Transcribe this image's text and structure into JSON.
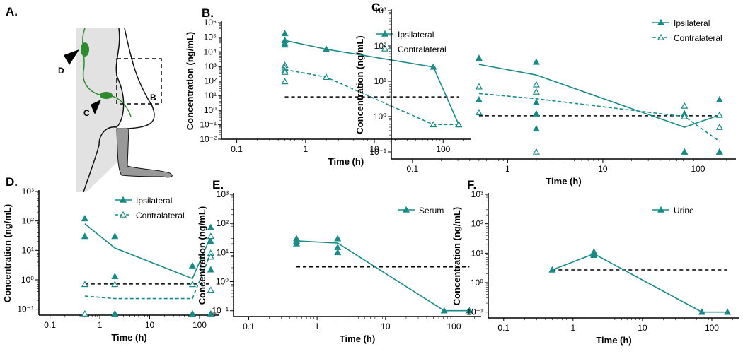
{
  "diagram": {
    "panel": "A.",
    "labels": [
      "D",
      "C",
      "B"
    ]
  },
  "chart_data": [
    {
      "type": "line",
      "panel": "B.",
      "xlabel": "Time (h)",
      "ylabel": "Concentration (ng/mL)",
      "xscale": "log",
      "yscale": "log",
      "xlim": [
        0.06,
        250
      ],
      "ylim": [
        0.01,
        1000000
      ],
      "xticks": [
        0.1,
        1,
        10,
        100
      ],
      "yticks": [
        {
          "value": 0.01,
          "label": "10⁻²"
        },
        {
          "value": 0.1,
          "label": "10⁻¹"
        },
        {
          "value": 1,
          "label": "10⁰"
        },
        {
          "value": 10,
          "label": "10¹"
        },
        {
          "value": 100,
          "label": "10²"
        },
        {
          "value": 1000,
          "label": "10³"
        },
        {
          "value": 10000,
          "label": "10⁴"
        },
        {
          "value": 100000,
          "label": "10⁵"
        },
        {
          "value": 1000000,
          "label": "10⁶"
        }
      ],
      "threshold": 8,
      "threshold_x": [
        0.5,
        168
      ],
      "series": [
        {
          "name": "Ipsilateral",
          "color": "#1a8a87",
          "dash": false,
          "marker": "filled",
          "x": [
            0.5,
            2,
            72,
            168
          ],
          "values": [
            60000,
            15000,
            900,
            0.1
          ],
          "points": {
            "x": [
              0.5,
              0.5,
              0.5,
              0.5,
              2,
              72,
              168,
              168
            ],
            "y": [
              180000,
              60000,
              40000,
              30000,
              15000,
              900,
              0.1,
              0.1
            ]
          }
        },
        {
          "name": "Contralateral",
          "color": "#1a8a87",
          "dash": true,
          "marker": "open",
          "x": [
            0.5,
            2,
            72,
            168
          ],
          "values": [
            600,
            180,
            0.1,
            0.1
          ],
          "points": {
            "x": [
              0.5,
              0.5,
              0.5,
              0.5,
              0.5,
              2,
              72,
              168
            ],
            "y": [
              1200,
              800,
              500,
              400,
              90,
              180,
              0.1,
              0.1
            ]
          }
        }
      ]
    },
    {
      "type": "line",
      "panel": "C.",
      "xlabel": "Time (h)",
      "ylabel": "Concentration (ng/mL)",
      "xscale": "log",
      "yscale": "log",
      "xlim": [
        0.06,
        250
      ],
      "ylim": [
        0.063,
        1000
      ],
      "xticks": [
        0.1,
        1,
        10,
        100
      ],
      "yticks": [
        {
          "value": 0.1,
          "label": "10⁻¹"
        },
        {
          "value": 1,
          "label": "10⁰"
        },
        {
          "value": 10,
          "label": "10¹"
        },
        {
          "value": 100,
          "label": "10²"
        },
        {
          "value": 1000,
          "label": "10³"
        }
      ],
      "threshold": 1.05,
      "threshold_x": [
        0.5,
        168
      ],
      "series": [
        {
          "name": "Ipsilateral",
          "color": "#1a8a87",
          "dash": false,
          "marker": "filled",
          "x": [
            0.5,
            2,
            72,
            168
          ],
          "values": [
            30,
            15,
            0.5,
            1.1
          ],
          "points": {
            "x": [
              0.5,
              0.5,
              2,
              2,
              2,
              2,
              72,
              72,
              72,
              168,
              168,
              168
            ],
            "y": [
              45,
              3,
              35,
              1.2,
              0.45,
              2.5,
              1.2,
              0.1,
              0.1,
              3,
              0.1,
              0.1
            ]
          }
        },
        {
          "name": "Contralateral",
          "color": "#1a8a87",
          "dash": true,
          "marker": "open",
          "x": [
            0.5,
            2,
            72,
            168
          ],
          "values": [
            4.5,
            3.2,
            1,
            0.2
          ],
          "points": {
            "x": [
              0.5,
              0.5,
              2,
              2,
              2,
              72,
              72,
              168,
              168
            ],
            "y": [
              7,
              1.3,
              8,
              5,
              0.1,
              2,
              1,
              1.1,
              0.5
            ]
          }
        }
      ]
    },
    {
      "type": "line",
      "panel": "D.",
      "xlabel": "Time (h)",
      "ylabel": "Concentration (ng/mL)",
      "xscale": "log",
      "yscale": "log",
      "xlim": [
        0.06,
        250
      ],
      "ylim": [
        0.063,
        1000
      ],
      "xticks": [
        0.1,
        1,
        10,
        100
      ],
      "yticks": [
        {
          "value": 0.1,
          "label": "10⁻¹"
        },
        {
          "value": 1,
          "label": "10⁰"
        },
        {
          "value": 10,
          "label": "10¹"
        },
        {
          "value": 100,
          "label": "10²"
        },
        {
          "value": 1000,
          "label": "10³"
        }
      ],
      "threshold": 0.72,
      "threshold_x": [
        0.5,
        168
      ],
      "series": [
        {
          "name": "Ipsilateral",
          "color": "#1a8a87",
          "dash": false,
          "marker": "filled",
          "x": [
            0.5,
            2,
            72,
            168
          ],
          "values": [
            80,
            12,
            1.1,
            30
          ],
          "points": {
            "x": [
              0.5,
              0.5,
              2,
              2,
              2,
              2,
              72,
              72,
              72,
              168,
              168,
              168,
              168,
              168
            ],
            "y": [
              120,
              30,
              30,
              1.3,
              0.07,
              0.07,
              3,
              0.07,
              0.07,
              60,
              20,
              6,
              2.2,
              0.07
            ]
          }
        },
        {
          "name": "Contralateral",
          "color": "#1a8a87",
          "dash": true,
          "marker": "open",
          "x": [
            0.5,
            2,
            72,
            168
          ],
          "values": [
            0.28,
            0.23,
            0.23,
            8
          ],
          "points": {
            "x": [
              0.5,
              0.5,
              2,
              72,
              168,
              168,
              168,
              168
            ],
            "y": [
              0.7,
              0.07,
              0.7,
              0.7,
              30,
              8,
              6,
              0.45
            ]
          }
        }
      ]
    },
    {
      "type": "line",
      "panel": "E.",
      "xlabel": "Time (h)",
      "ylabel": "Concentration (ng/mL)",
      "xscale": "log",
      "yscale": "log",
      "xlim": [
        0.06,
        250
      ],
      "ylim": [
        0.063,
        1000
      ],
      "xticks": [
        0.1,
        1,
        10,
        100
      ],
      "yticks": [
        {
          "value": 0.1,
          "label": "10⁻¹"
        },
        {
          "value": 1,
          "label": "10⁰"
        },
        {
          "value": 10,
          "label": "10¹"
        },
        {
          "value": 100,
          "label": "10²"
        },
        {
          "value": 1000,
          "label": "10³"
        }
      ],
      "threshold": 3.2,
      "threshold_x": [
        0.5,
        168
      ],
      "series": [
        {
          "name": "Serum",
          "color": "#1a8a87",
          "dash": false,
          "marker": "filled",
          "x": [
            0.5,
            2,
            72,
            168
          ],
          "values": [
            25,
            21,
            0.1,
            0.1
          ],
          "points": {
            "x": [
              0.5,
              0.5,
              0.5,
              2,
              2,
              2,
              72,
              168
            ],
            "y": [
              30,
              25,
              20,
              30,
              15,
              10,
              0.1,
              0.1
            ]
          }
        }
      ]
    },
    {
      "type": "line",
      "panel": "F.",
      "xlabel": "Time (h)",
      "ylabel": "Concentration (ng/mL)",
      "xscale": "log",
      "yscale": "log",
      "xlim": [
        0.06,
        250
      ],
      "ylim": [
        0.063,
        1000
      ],
      "xticks": [
        0.1,
        1,
        10,
        100
      ],
      "yticks": [
        {
          "value": 0.1,
          "label": "10⁻¹"
        },
        {
          "value": 1,
          "label": "10⁰"
        },
        {
          "value": 10,
          "label": "10¹"
        },
        {
          "value": 100,
          "label": "10²"
        },
        {
          "value": 1000,
          "label": "10³"
        }
      ],
      "threshold": 2.7,
      "threshold_x": [
        0.5,
        168
      ],
      "series": [
        {
          "name": "Urine",
          "color": "#1a8a87",
          "dash": false,
          "marker": "filled",
          "x": [
            0.5,
            2,
            72,
            168
          ],
          "values": [
            2.7,
            9.5,
            0.1,
            0.1
          ],
          "points": {
            "x": [
              0.5,
              2,
              2,
              2,
              72,
              168
            ],
            "y": [
              2.7,
              11,
              9,
              8.5,
              0.1,
              0.1
            ]
          }
        }
      ]
    }
  ]
}
